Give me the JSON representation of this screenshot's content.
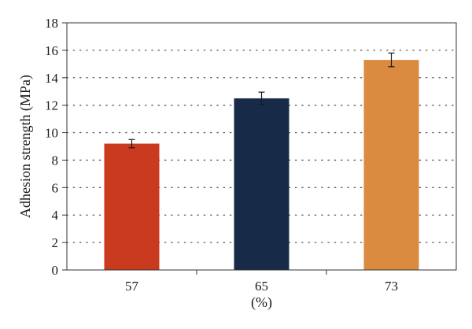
{
  "chart_data": {
    "type": "bar",
    "categories": [
      "57",
      "65",
      "73"
    ],
    "values": [
      9.2,
      12.5,
      15.3
    ],
    "errors": [
      0.3,
      0.45,
      0.5
    ],
    "bar_colors": [
      "#c93a1e",
      "#172a47",
      "#da8b3f"
    ],
    "title": "",
    "xlabel": "(%)",
    "ylabel": "Adhesion strength (MPa)",
    "ylim": [
      0,
      18
    ],
    "yticks": [
      "0",
      "2",
      "4",
      "6",
      "8",
      "10",
      "12",
      "14",
      "16",
      "18"
    ],
    "grid": "horizontal dotted",
    "legend": "none"
  }
}
